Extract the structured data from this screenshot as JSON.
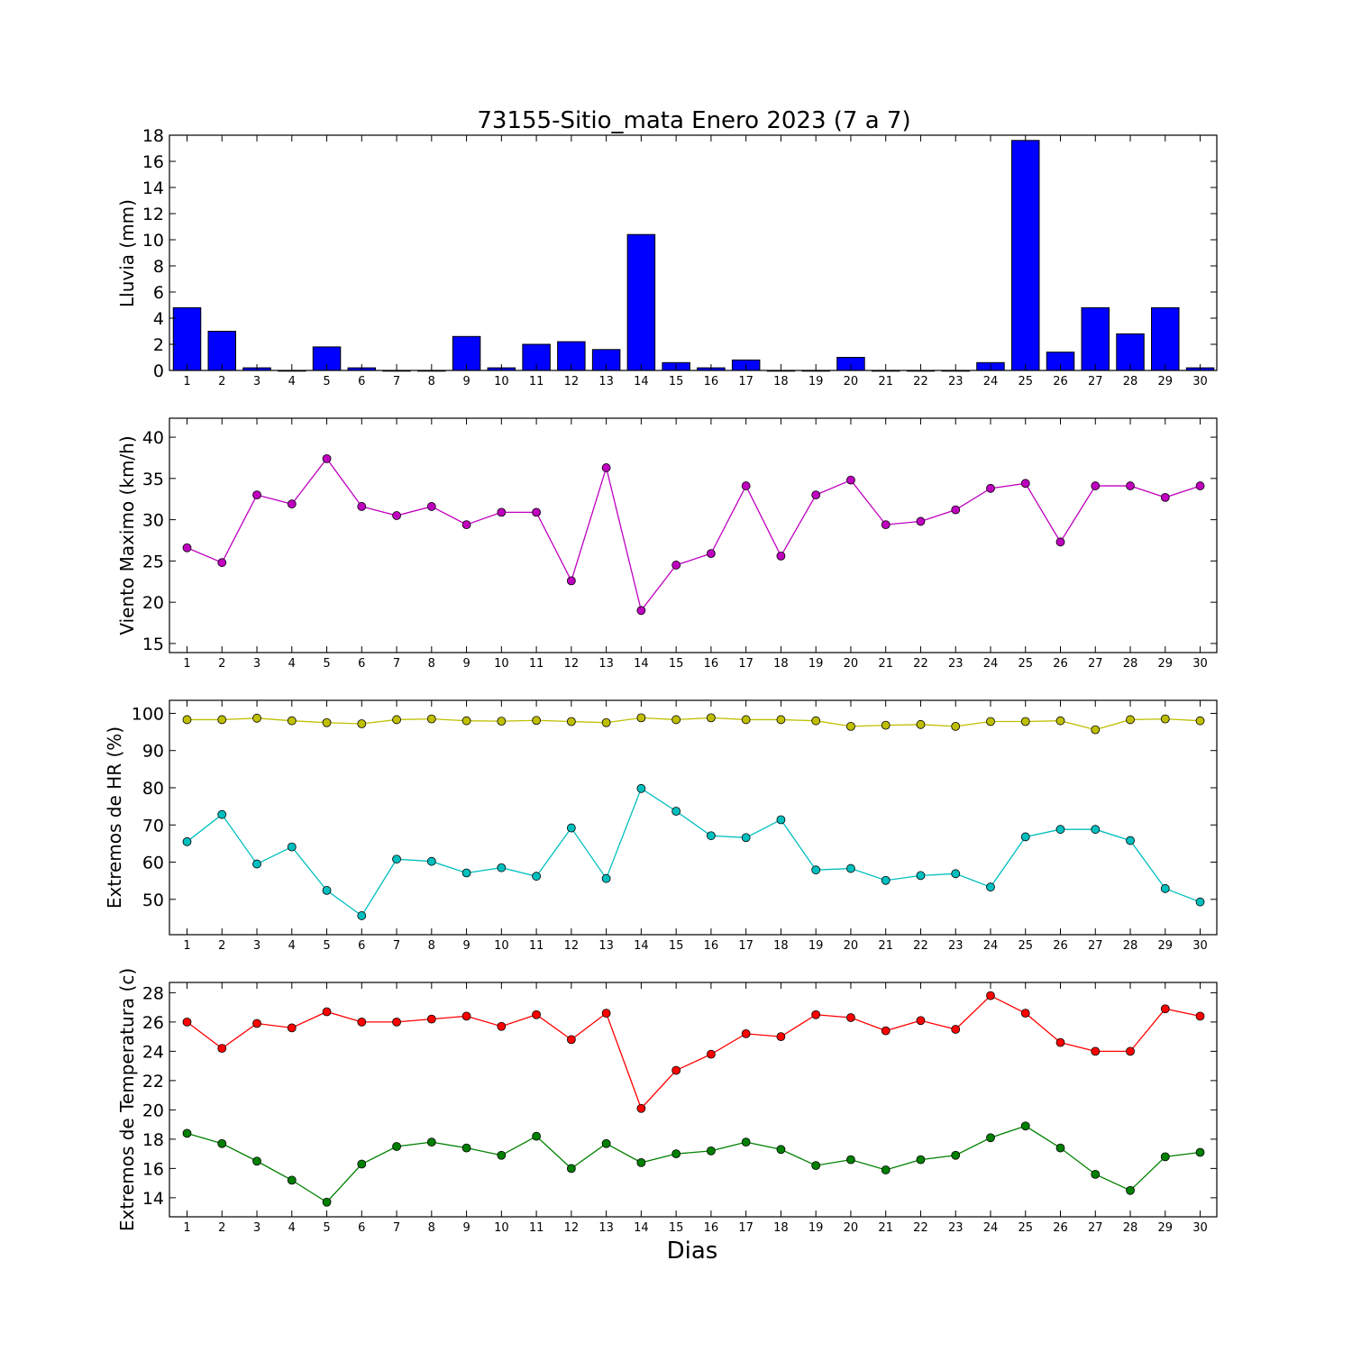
{
  "figure": {
    "title": "73155-Sitio_mata Enero 2023  (7 a 7)",
    "xlabel": "Dias"
  },
  "chart_data": [
    {
      "type": "bar",
      "title": "73155-Sitio_mata Enero 2023  (7 a 7)",
      "ylabel": "Lluvia (mm)",
      "xlabel": "",
      "categories": [
        1,
        2,
        3,
        4,
        5,
        6,
        7,
        8,
        9,
        10,
        11,
        12,
        13,
        14,
        15,
        16,
        17,
        18,
        19,
        20,
        21,
        22,
        23,
        24,
        25,
        26,
        27,
        28,
        29,
        30
      ],
      "values": [
        4.8,
        3.0,
        0.2,
        0.0,
        1.8,
        0.2,
        0.0,
        0.0,
        2.6,
        0.2,
        2.0,
        2.2,
        1.6,
        10.4,
        0.6,
        0.2,
        0.8,
        0.0,
        0.0,
        1.0,
        0.0,
        0.0,
        0.0,
        0.6,
        17.6,
        1.4,
        4.8,
        2.8,
        4.8,
        0.2
      ],
      "ylim": [
        0,
        18
      ],
      "yticks": [
        0,
        2,
        4,
        6,
        8,
        10,
        12,
        14,
        16,
        18
      ],
      "color": "#0000ff",
      "grid": false
    },
    {
      "type": "line",
      "ylabel": "Viento Maximo (km/h)",
      "x": [
        1,
        2,
        3,
        4,
        5,
        6,
        7,
        8,
        9,
        10,
        11,
        12,
        13,
        14,
        15,
        16,
        17,
        18,
        19,
        20,
        21,
        22,
        23,
        24,
        25,
        26,
        27,
        28,
        29,
        30
      ],
      "series": [
        {
          "values": [
            26.6,
            24.8,
            33.0,
            31.9,
            37.4,
            31.6,
            30.5,
            31.6,
            29.4,
            30.9,
            30.9,
            22.6,
            36.3,
            19.0,
            24.5,
            25.9,
            34.1,
            25.6,
            33.0,
            34.8,
            29.4,
            29.8,
            31.2,
            33.8,
            34.4,
            27.3,
            34.1,
            34.1,
            32.7,
            34.1
          ],
          "color": "#bf00bf"
        }
      ],
      "ylim": [
        13.9,
        42.3
      ],
      "yticks": [
        15,
        20,
        25,
        30,
        35,
        40
      ],
      "grid": false
    },
    {
      "type": "line",
      "ylabel": "Extremos de HR (%)",
      "x": [
        1,
        2,
        3,
        4,
        5,
        6,
        7,
        8,
        9,
        10,
        11,
        12,
        13,
        14,
        15,
        16,
        17,
        18,
        19,
        20,
        21,
        22,
        23,
        24,
        25,
        26,
        27,
        28,
        29,
        30
      ],
      "series": [
        {
          "values": [
            98.3,
            98.3,
            98.7,
            98.0,
            97.5,
            97.2,
            98.3,
            98.5,
            98.0,
            97.9,
            98.1,
            97.8,
            97.5,
            98.8,
            98.3,
            98.8,
            98.3,
            98.3,
            98.0,
            96.5,
            96.8,
            97.0,
            96.5,
            97.8,
            97.8,
            98.0,
            95.6,
            98.3,
            98.5,
            98.0
          ],
          "color": "#bfbf00"
        },
        {
          "values": [
            65.5,
            72.8,
            59.5,
            64.1,
            52.4,
            45.6,
            60.8,
            60.2,
            57.1,
            58.5,
            56.2,
            69.2,
            55.6,
            79.8,
            73.7,
            67.1,
            66.6,
            71.4,
            57.9,
            58.3,
            55.1,
            56.4,
            56.9,
            53.3,
            66.8,
            68.8,
            68.8,
            65.8,
            52.9,
            49.3
          ],
          "color": "#00bfbf"
        }
      ],
      "ylim": [
        40.5,
        103.5
      ],
      "yticks": [
        50,
        60,
        70,
        80,
        90,
        100
      ],
      "grid": false
    },
    {
      "type": "line",
      "ylabel": "Extremos de Temperatura (c)",
      "xlabel": "Dias",
      "x": [
        1,
        2,
        3,
        4,
        5,
        6,
        7,
        8,
        9,
        10,
        11,
        12,
        13,
        14,
        15,
        16,
        17,
        18,
        19,
        20,
        21,
        22,
        23,
        24,
        25,
        26,
        27,
        28,
        29,
        30
      ],
      "series": [
        {
          "values": [
            26.0,
            24.2,
            25.9,
            25.6,
            26.7,
            26.0,
            26.0,
            26.2,
            26.4,
            25.7,
            26.5,
            24.8,
            26.6,
            20.1,
            22.7,
            23.8,
            25.2,
            25.0,
            26.5,
            26.3,
            25.4,
            26.1,
            25.5,
            27.8,
            26.6,
            24.6,
            24.0,
            24.0,
            26.9,
            26.4
          ],
          "color": "#ff0000"
        },
        {
          "values": [
            18.4,
            17.7,
            16.5,
            15.2,
            13.7,
            16.3,
            17.5,
            17.8,
            17.4,
            16.9,
            18.2,
            16.0,
            17.7,
            16.4,
            17.0,
            17.2,
            17.8,
            17.3,
            16.2,
            16.6,
            15.9,
            16.6,
            16.9,
            18.1,
            18.9,
            17.4,
            15.6,
            14.5,
            16.8,
            17.1
          ],
          "color": "#008000"
        }
      ],
      "ylim": [
        12.7,
        28.7
      ],
      "yticks": [
        14,
        16,
        18,
        20,
        22,
        24,
        26,
        28
      ],
      "grid": false
    }
  ]
}
